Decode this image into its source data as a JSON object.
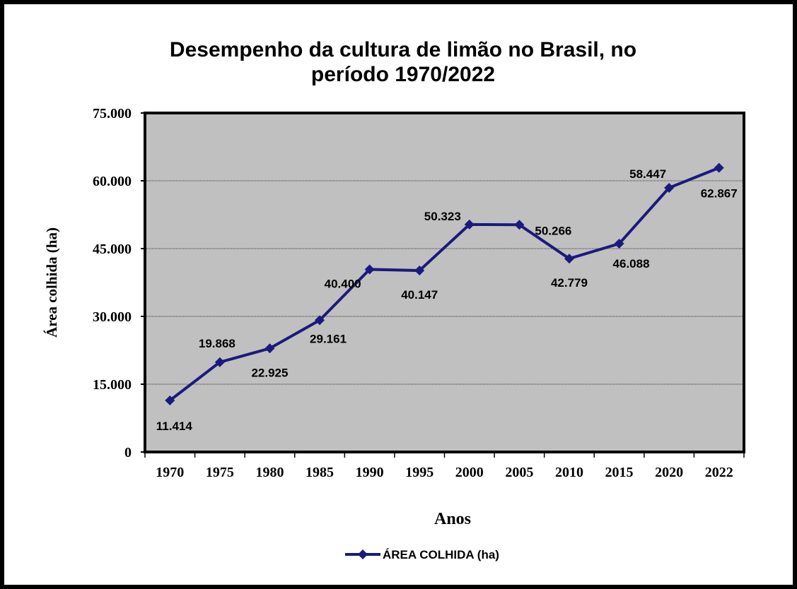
{
  "chart_data": {
    "type": "line",
    "title": "Desempenho da cultura de limão no Brasil,  no",
    "subtitle": "período 1970/2022",
    "x_label": "Anos",
    "y_label": "Área colhida  (ha)",
    "categories": [
      "1970",
      "1975",
      "1980",
      "1985",
      "1990",
      "1995",
      "2000",
      "2005",
      "2010",
      "2015",
      "2020",
      "2022"
    ],
    "series": [
      {
        "name": "ÁREA COLHIDA (ha)",
        "color": "#1a1a7e",
        "values": [
          11414,
          19868,
          22925,
          29161,
          40400,
          40147,
          50323,
          50266,
          42779,
          46088,
          58447,
          62867
        ],
        "value_labels": [
          "11.414",
          "19.868",
          "22.925",
          "29.161",
          "40.400",
          "40.147",
          "50.323",
          "50.266",
          "42.779",
          "46.088",
          "58.447",
          "62.867"
        ]
      }
    ],
    "ylim": [
      0,
      75000
    ],
    "yticks": [
      0,
      {
        "value": 15000,
        "label": "15.000"
      },
      {
        "value": 30000,
        "label": "30.000"
      },
      {
        "value": 45000,
        "label": "45.000"
      },
      {
        "value": 60000,
        "label": "60.000"
      },
      {
        "value": 75000,
        "label": "75.000"
      }
    ],
    "grid": true,
    "legend": "bottom"
  }
}
